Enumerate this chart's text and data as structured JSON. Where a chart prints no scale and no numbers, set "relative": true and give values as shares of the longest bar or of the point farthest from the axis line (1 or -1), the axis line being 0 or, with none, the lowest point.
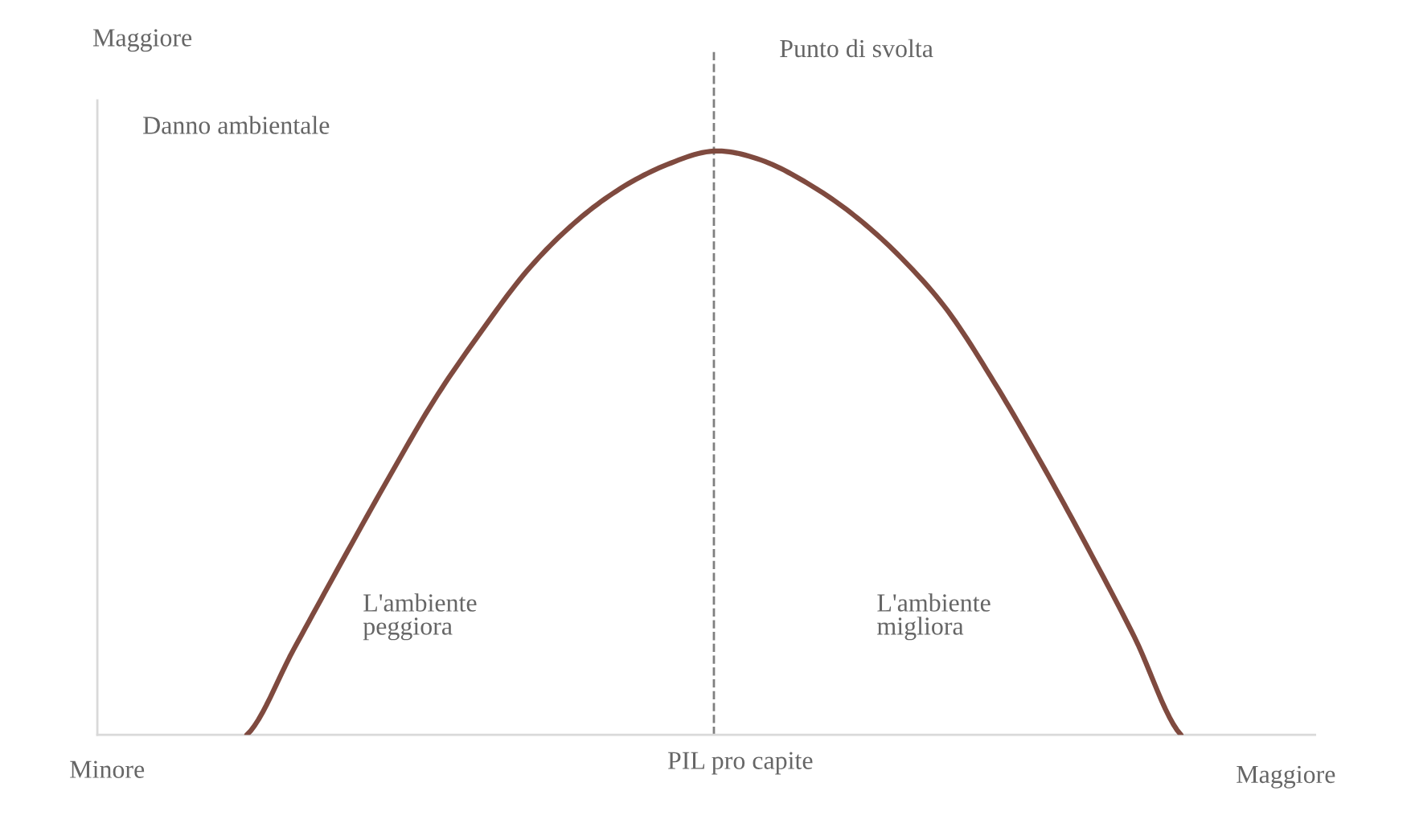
{
  "chart_data": {
    "type": "line",
    "relative": true,
    "ylabel": "Danno ambientale",
    "xlabel": "PIL pro capite",
    "categories": [
      null,
      null,
      null,
      null,
      null,
      null,
      null,
      null,
      null,
      null,
      null,
      null,
      null,
      null,
      null,
      null,
      null,
      null,
      null,
      null,
      null
    ],
    "series": [
      {
        "color": "#7f4a3f",
        "values": [
          0,
          0.146,
          0.292,
          0.435,
          0.572,
          0.689,
          0.795,
          0.876,
          0.936,
          0.977,
          1,
          0.985,
          0.945,
          0.89,
          0.818,
          0.727,
          0.604,
          0.467,
          0.321,
          0.168,
          0
        ]
      }
    ],
    "annotations": [
      "Maggiore",
      "Minore",
      "Maggiore",
      "L'ambiente\npeggiora",
      "L'ambiente\nmigliora",
      "Punto di svolta"
    ],
    "marker": "none",
    "line_style": "solid"
  }
}
